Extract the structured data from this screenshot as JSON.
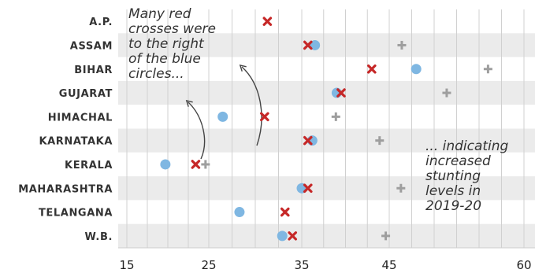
{
  "chart_data": {
    "type": "scatter",
    "categories": [
      "A.P.",
      "ASSAM",
      "BIHAR",
      "GUJARAT",
      "HIMACHAL",
      "KARNATAKA",
      "KERALA",
      "MAHARASHTRA",
      "TELANGANA",
      "W.B."
    ],
    "series": [
      {
        "marker": "circle",
        "color": "#7fb7e2",
        "values": [
          null,
          36.5,
          48,
          39,
          26.5,
          36.2,
          19.7,
          35,
          28.3,
          32.9
        ]
      },
      {
        "marker": "x-cross",
        "color": "#c62828",
        "values": [
          31.3,
          35.7,
          43,
          39.5,
          31,
          35.7,
          23.4,
          35.7,
          33.2,
          34
        ]
      },
      {
        "marker": "plus",
        "color": "#9e9e9e",
        "values": [
          null,
          46.4,
          56,
          51.4,
          38.9,
          43.9,
          24.6,
          46.3,
          null,
          44.6
        ]
      }
    ],
    "x_ticks": [
      "15",
      "25",
      "35",
      "45",
      "60"
    ],
    "xlim": [
      15,
      60
    ],
    "grid": true,
    "annotations": [
      {
        "lines": [
          "Many red",
          "crosses were",
          "to the right",
          "of the blue",
          "circles..."
        ]
      },
      {
        "lines": [
          "... indicating",
          "increased",
          "stunting",
          "levels in",
          "2019-20"
        ]
      }
    ]
  }
}
